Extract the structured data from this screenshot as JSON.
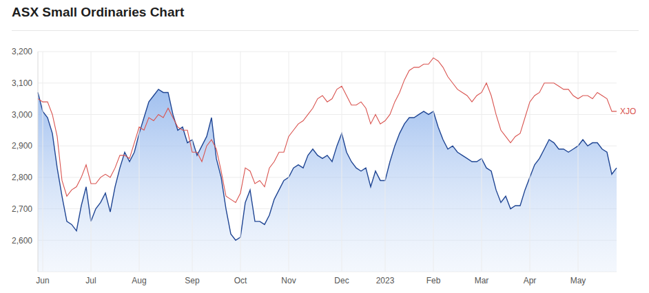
{
  "chart_data": {
    "type": "line",
    "title": "ASX Small Ordinaries Chart",
    "categories": [
      null,
      "Jun",
      null,
      null,
      null,
      null,
      null,
      null,
      null,
      null,
      null,
      "Jul",
      null,
      null,
      null,
      null,
      null,
      null,
      null,
      null,
      null,
      "Aug",
      null,
      null,
      null,
      null,
      null,
      null,
      null,
      null,
      null,
      null,
      "Sep",
      null,
      null,
      null,
      null,
      null,
      null,
      null,
      null,
      null,
      "Oct",
      null,
      null,
      null,
      null,
      null,
      null,
      null,
      null,
      null,
      "Nov",
      null,
      null,
      null,
      null,
      null,
      null,
      null,
      null,
      null,
      null,
      "Dec",
      null,
      null,
      null,
      null,
      null,
      null,
      null,
      null,
      "2023",
      null,
      null,
      null,
      null,
      null,
      null,
      null,
      null,
      null,
      "Feb",
      null,
      null,
      null,
      null,
      null,
      null,
      null,
      null,
      null,
      "Mar",
      null,
      null,
      null,
      null,
      null,
      null,
      null,
      null,
      null,
      "Apr",
      null,
      null,
      null,
      null,
      null,
      null,
      null,
      null,
      null,
      "May",
      null,
      null,
      null,
      null,
      null,
      null,
      null,
      null
    ],
    "series": [
      {
        "type": "area",
        "color": "#1f4593",
        "values": [
          3070,
          3010,
          2990,
          2940,
          2830,
          2740,
          2660,
          2650,
          2630,
          2710,
          2770,
          2660,
          2700,
          2720,
          2750,
          2690,
          2770,
          2830,
          2880,
          2850,
          2880,
          2940,
          2990,
          3040,
          3060,
          3080,
          3070,
          3070,
          3000,
          2950,
          2960,
          2910,
          2920,
          2870,
          2900,
          2930,
          2990,
          2860,
          2800,
          2700,
          2620,
          2600,
          2610,
          2720,
          2760,
          2660,
          2660,
          2650,
          2680,
          2730,
          2760,
          2790,
          2800,
          2830,
          2840,
          2830,
          2870,
          2890,
          2870,
          2860,
          2870,
          2850,
          2900,
          2940,
          2880,
          2850,
          2830,
          2820,
          2830,
          2770,
          2820,
          2790,
          2790,
          2850,
          2900,
          2940,
          2970,
          2990,
          2990,
          3000,
          3010,
          3000,
          3010,
          2960,
          2920,
          2890,
          2900,
          2880,
          2870,
          2860,
          2850,
          2850,
          2860,
          2830,
          2820,
          2760,
          2720,
          2740,
          2700,
          2710,
          2710,
          2760,
          2800,
          2840,
          2860,
          2890,
          2920,
          2910,
          2890,
          2890,
          2880,
          2890,
          2900,
          2920,
          2900,
          2910,
          2910,
          2890,
          2880,
          2810,
          2830
        ]
      },
      {
        "name": "XJO",
        "type": "line",
        "color": "#d9534f",
        "values": [
          3050,
          3040,
          3040,
          3000,
          2930,
          2790,
          2740,
          2760,
          2770,
          2800,
          2840,
          2780,
          2780,
          2800,
          2810,
          2800,
          2830,
          2870,
          2870,
          2860,
          2910,
          2960,
          2950,
          2990,
          2980,
          3000,
          2990,
          3020,
          2990,
          2960,
          2950,
          2950,
          2880,
          2880,
          2850,
          2900,
          2920,
          2890,
          2820,
          2740,
          2730,
          2720,
          2750,
          2830,
          2820,
          2780,
          2790,
          2770,
          2830,
          2850,
          2880,
          2880,
          2930,
          2950,
          2970,
          2980,
          3000,
          3020,
          3050,
          3060,
          3040,
          3050,
          3080,
          3090,
          3060,
          3030,
          3030,
          3040,
          3020,
          2970,
          3000,
          2970,
          2980,
          3000,
          3040,
          3070,
          3110,
          3140,
          3150,
          3150,
          3160,
          3160,
          3180,
          3170,
          3150,
          3120,
          3100,
          3080,
          3070,
          3060,
          3040,
          3060,
          3070,
          3100,
          3060,
          3000,
          2950,
          2930,
          2910,
          2930,
          2940,
          2990,
          3040,
          3060,
          3070,
          3100,
          3100,
          3100,
          3090,
          3080,
          3080,
          3060,
          3050,
          3060,
          3060,
          3050,
          3070,
          3060,
          3050,
          3010,
          3010
        ]
      }
    ],
    "ylim": [
      2500,
      3200
    ],
    "yticks": [
      {
        "value": 2600,
        "label": "2,600"
      },
      {
        "value": 2700,
        "label": "2,700"
      },
      {
        "value": 2800,
        "label": "2,800"
      },
      {
        "value": 2900,
        "label": "2,900"
      },
      {
        "value": 3000,
        "label": "3,000"
      },
      {
        "value": 3100,
        "label": "3,100"
      },
      {
        "value": 3200,
        "label": "3,200"
      }
    ],
    "grid": true
  }
}
